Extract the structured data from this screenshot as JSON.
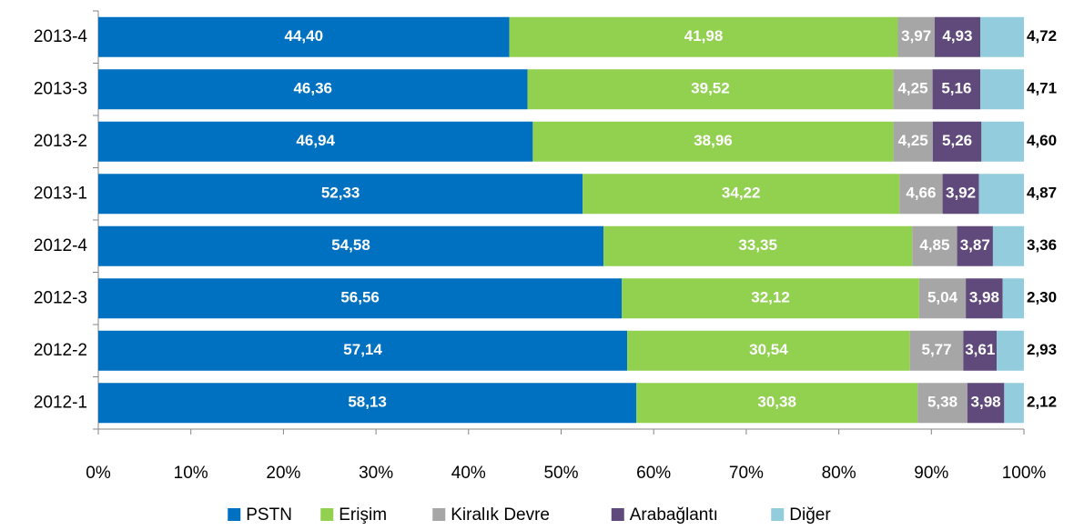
{
  "chart_data": {
    "type": "bar",
    "orientation": "horizontal",
    "stacked": true,
    "categories": [
      "2013-4",
      "2013-3",
      "2013-2",
      "2013-1",
      "2012-4",
      "2012-3",
      "2012-2",
      "2012-1"
    ],
    "series": [
      {
        "name": "PSTN",
        "color": "#0070c0",
        "values": [
          44.4,
          46.36,
          46.94,
          52.33,
          54.58,
          56.56,
          57.14,
          58.13
        ],
        "value_labels": [
          "44,40",
          "46,36",
          "46,94",
          "52,33",
          "54,58",
          "56,56",
          "57,14",
          "58,13"
        ]
      },
      {
        "name": "Erişim",
        "color": "#92d050",
        "values": [
          41.98,
          39.52,
          38.96,
          34.22,
          33.35,
          32.12,
          30.54,
          30.38
        ],
        "value_labels": [
          "41,98",
          "39,52",
          "38,96",
          "34,22",
          "33,35",
          "32,12",
          "30,54",
          "30,38"
        ]
      },
      {
        "name": "Kiralık Devre",
        "color": "#a6a6a6",
        "values": [
          3.97,
          4.25,
          4.25,
          4.66,
          4.85,
          5.04,
          5.77,
          5.38
        ],
        "value_labels": [
          "3,97",
          "4,25",
          "4,25",
          "4,66",
          "4,85",
          "5,04",
          "5,77",
          "5,38"
        ]
      },
      {
        "name": "Arabağlantı",
        "color": "#604a7b",
        "values": [
          4.93,
          5.16,
          5.26,
          3.92,
          3.87,
          3.98,
          3.61,
          3.98
        ],
        "value_labels": [
          "4,93",
          "5,16",
          "5,26",
          "3,92",
          "3,87",
          "3,98",
          "3,61",
          "3,98"
        ]
      },
      {
        "name": "Diğer",
        "color": "#93cddd",
        "values": [
          4.72,
          4.71,
          4.6,
          4.87,
          3.36,
          2.3,
          2.93,
          2.12
        ],
        "value_labels": [
          "4,72",
          "4,71",
          "4,60",
          "4,87",
          "3,36",
          "2,30",
          "2,93",
          "2,12"
        ]
      }
    ],
    "xlim": [
      0,
      100
    ],
    "xticks": [
      {
        "value": 0,
        "label": "0%"
      },
      {
        "value": 10,
        "label": "10%"
      },
      {
        "value": 20,
        "label": "20%"
      },
      {
        "value": 30,
        "label": "30%"
      },
      {
        "value": 40,
        "label": "40%"
      },
      {
        "value": 50,
        "label": "50%"
      },
      {
        "value": 60,
        "label": "60%"
      },
      {
        "value": 70,
        "label": "70%"
      },
      {
        "value": 80,
        "label": "80%"
      },
      {
        "value": 90,
        "label": "90%"
      },
      {
        "value": 100,
        "label": "100%"
      }
    ],
    "legend": "bottom"
  }
}
